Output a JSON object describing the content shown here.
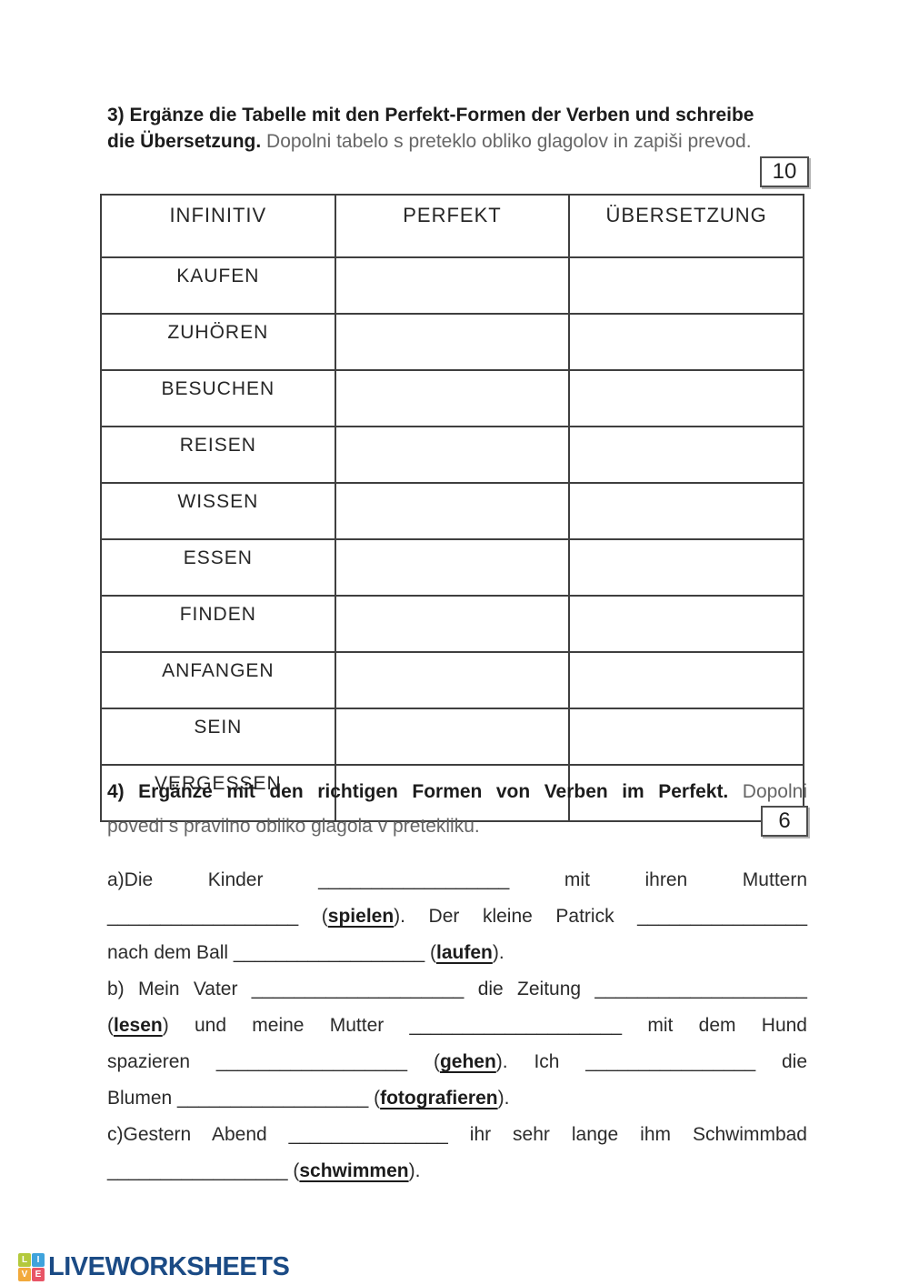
{
  "ex3": {
    "points": "10",
    "title_lines": [
      {
        "j": false,
        "seg": [
          {
            "t": "3) Ergänze die Tabelle mit den Perfekt-Formen der Verben und schreibe",
            "s": "bold"
          }
        ]
      },
      {
        "j": false,
        "seg": [
          {
            "t": "die Übersetzung.",
            "s": "bold"
          },
          {
            "t": " Dopolni tabelo s preteklo obliko glagolov in zapiši prevod.",
            "s": "gray"
          }
        ]
      }
    ],
    "table": {
      "headers": [
        "INFINITIV",
        "PERFEKT",
        "ÜBERSETZUNG"
      ],
      "rows": [
        "KAUFEN",
        "ZUHÖREN",
        "BESUCHEN",
        "REISEN",
        "WISSEN",
        "ESSEN",
        "FINDEN",
        "ANFANGEN",
        "SEIN",
        "VERGESSEN"
      ]
    }
  },
  "ex4": {
    "points": "6",
    "title_lines": [
      {
        "j": true,
        "seg": [
          {
            "t": "4) Ergänze mit den richtigen Formen von Verben im Perfekt.",
            "s": "bold"
          },
          {
            "t": " Dopolni",
            "s": "gray"
          }
        ]
      },
      {
        "j": false,
        "seg": [
          {
            "t": "povedi s pravilno obliko glagola v pretekliku.",
            "s": "gray"
          }
        ]
      }
    ],
    "body_lines": [
      {
        "j": true,
        "seg": [
          {
            "t": "a)Die Kinder ",
            "s": "plain"
          },
          {
            "t": "__________________",
            "s": "blank"
          },
          {
            "t": " mit ihren Muttern",
            "s": "plain"
          }
        ]
      },
      {
        "j": true,
        "seg": [
          {
            "t": "__________________",
            "s": "blank"
          },
          {
            "t": " (",
            "s": "plain"
          },
          {
            "t": "spielen",
            "s": "verb"
          },
          {
            "t": "). Der kleine Patrick ",
            "s": "plain"
          },
          {
            "t": "________________",
            "s": "blank"
          }
        ]
      },
      {
        "j": false,
        "seg": [
          {
            "t": "nach dem Ball ",
            "s": "plain"
          },
          {
            "t": "__________________",
            "s": "blank"
          },
          {
            "t": " (",
            "s": "plain"
          },
          {
            "t": "laufen",
            "s": "verb"
          },
          {
            "t": ").",
            "s": "plain"
          }
        ]
      },
      {
        "j": true,
        "seg": [
          {
            "t": "b) Mein Vater ",
            "s": "plain"
          },
          {
            "t": "____________________",
            "s": "blank"
          },
          {
            "t": " die Zeitung ",
            "s": "plain"
          },
          {
            "t": "____________________",
            "s": "blank"
          }
        ]
      },
      {
        "j": true,
        "seg": [
          {
            "t": "(",
            "s": "plain"
          },
          {
            "t": "lesen",
            "s": "verb"
          },
          {
            "t": ") und meine Mutter ",
            "s": "plain"
          },
          {
            "t": "____________________",
            "s": "blank"
          },
          {
            "t": " mit dem Hund",
            "s": "plain"
          }
        ]
      },
      {
        "j": true,
        "seg": [
          {
            "t": "spazieren ",
            "s": "plain"
          },
          {
            "t": "__________________",
            "s": "blank"
          },
          {
            "t": " (",
            "s": "plain"
          },
          {
            "t": "gehen",
            "s": "verb"
          },
          {
            "t": "). Ich ",
            "s": "plain"
          },
          {
            "t": "________________",
            "s": "blank"
          },
          {
            "t": " die",
            "s": "plain"
          }
        ]
      },
      {
        "j": false,
        "seg": [
          {
            "t": "Blumen ",
            "s": "plain"
          },
          {
            "t": "__________________",
            "s": "blank"
          },
          {
            "t": " (",
            "s": "plain"
          },
          {
            "t": "fotografieren",
            "s": "verb"
          },
          {
            "t": ").",
            "s": "plain"
          }
        ]
      },
      {
        "j": true,
        "seg": [
          {
            "t": "c)Gestern Abend ",
            "s": "plain"
          },
          {
            "t": "_______________",
            "s": "blank"
          },
          {
            "t": " ihr sehr lange ihm Schwimmbad",
            "s": "plain"
          }
        ]
      },
      {
        "j": false,
        "seg": [
          {
            "t": "_________________",
            "s": "blank"
          },
          {
            "t": " (",
            "s": "plain"
          },
          {
            "t": "schwimmen",
            "s": "verb"
          },
          {
            "t": ").",
            "s": "plain"
          }
        ]
      }
    ]
  },
  "footer": {
    "brand": "LIVEWORKSHEETS",
    "brand_color": "#1b4b85",
    "tiles": [
      {
        "letter": "L",
        "color": "#b3c93c"
      },
      {
        "letter": "I",
        "color": "#3fa3dc"
      },
      {
        "letter": "V",
        "color": "#f2a93b"
      },
      {
        "letter": "E",
        "color": "#e85566"
      }
    ]
  }
}
